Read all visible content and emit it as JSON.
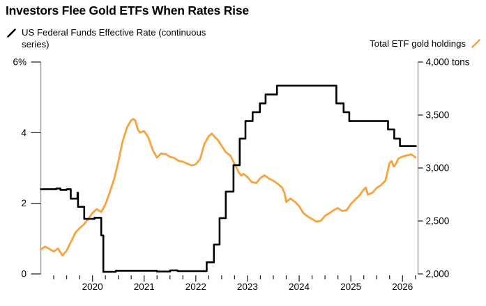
{
  "chart_data": {
    "type": "line",
    "title": "Investors Flee Gold ETFs When Rates Rise",
    "legend_position": "top",
    "grid": false,
    "x_axis": {
      "range_decimal_years": [
        2019.0,
        2026.3
      ],
      "year_tick_values": [
        2020,
        2021,
        2022,
        2023,
        2024,
        2025,
        2026
      ],
      "year_labels": [
        "2020",
        "2021",
        "2022",
        "2023",
        "2024",
        "2025",
        "2026"
      ],
      "minor_tick_interval_years": 0.25
    },
    "left_axis": {
      "unit": "%",
      "range": [
        0,
        6
      ],
      "tick_values": [
        0,
        2,
        4,
        6
      ],
      "tick_labels": [
        "0",
        "2",
        "4",
        "6%"
      ]
    },
    "right_axis": {
      "unit": "tons",
      "range": [
        2000,
        4000
      ],
      "tick_values": [
        2000,
        2500,
        3000,
        3500,
        4000
      ],
      "tick_labels": [
        "2,000",
        "2,500",
        "3,000",
        "3,500",
        "4,000 tons"
      ]
    },
    "series": [
      {
        "name": "US Federal Funds Effective Rate (continuous series)",
        "axis": "left",
        "unit": "%",
        "color": "#000000",
        "line_style": "step",
        "points": [
          [
            2019.0,
            2.4
          ],
          [
            2019.3,
            2.42
          ],
          [
            2019.38,
            2.38
          ],
          [
            2019.5,
            2.4
          ],
          [
            2019.58,
            2.13
          ],
          [
            2019.71,
            2.3
          ],
          [
            2019.72,
            1.9
          ],
          [
            2019.84,
            1.56
          ],
          [
            2020.04,
            1.59
          ],
          [
            2020.17,
            1.09
          ],
          [
            2020.21,
            0.06
          ],
          [
            2020.45,
            0.09
          ],
          [
            2021.25,
            0.07
          ],
          [
            2021.5,
            0.1
          ],
          [
            2021.65,
            0.08
          ],
          [
            2022.21,
            0.33
          ],
          [
            2022.35,
            0.83
          ],
          [
            2022.46,
            1.58
          ],
          [
            2022.58,
            2.33
          ],
          [
            2022.73,
            3.08
          ],
          [
            2022.85,
            3.83
          ],
          [
            2022.96,
            4.33
          ],
          [
            2023.1,
            4.58
          ],
          [
            2023.24,
            4.83
          ],
          [
            2023.35,
            5.08
          ],
          [
            2023.57,
            5.33
          ],
          [
            2024.72,
            4.83
          ],
          [
            2024.86,
            4.58
          ],
          [
            2024.97,
            4.33
          ],
          [
            2025.72,
            4.09
          ],
          [
            2025.84,
            3.83
          ],
          [
            2025.95,
            3.62
          ],
          [
            2026.26,
            3.62
          ]
        ]
      },
      {
        "name": "Total ETF gold holdings",
        "axis": "right",
        "unit": "tons",
        "color": "#F8A33C",
        "line_style": "linear",
        "points": [
          [
            2019.0,
            2230
          ],
          [
            2019.08,
            2258
          ],
          [
            2019.17,
            2235
          ],
          [
            2019.25,
            2212
          ],
          [
            2019.33,
            2240
          ],
          [
            2019.42,
            2175
          ],
          [
            2019.5,
            2220
          ],
          [
            2019.58,
            2300
          ],
          [
            2019.67,
            2390
          ],
          [
            2019.75,
            2432
          ],
          [
            2019.83,
            2465
          ],
          [
            2019.92,
            2520
          ],
          [
            2020.0,
            2575
          ],
          [
            2020.08,
            2612
          ],
          [
            2020.17,
            2585
          ],
          [
            2020.25,
            2655
          ],
          [
            2020.33,
            2765
          ],
          [
            2020.42,
            2895
          ],
          [
            2020.5,
            3060
          ],
          [
            2020.58,
            3245
          ],
          [
            2020.67,
            3385
          ],
          [
            2020.75,
            3450
          ],
          [
            2020.79,
            3462
          ],
          [
            2020.83,
            3448
          ],
          [
            2020.88,
            3360
          ],
          [
            2020.92,
            3335
          ],
          [
            2021.0,
            3348
          ],
          [
            2021.08,
            3290
          ],
          [
            2021.17,
            3165
          ],
          [
            2021.25,
            3098
          ],
          [
            2021.33,
            3138
          ],
          [
            2021.42,
            3130
          ],
          [
            2021.5,
            3105
          ],
          [
            2021.58,
            3095
          ],
          [
            2021.67,
            3068
          ],
          [
            2021.75,
            3060
          ],
          [
            2021.83,
            3042
          ],
          [
            2021.92,
            3025
          ],
          [
            2022.0,
            3035
          ],
          [
            2022.08,
            3082
          ],
          [
            2022.17,
            3230
          ],
          [
            2022.25,
            3300
          ],
          [
            2022.31,
            3325
          ],
          [
            2022.37,
            3290
          ],
          [
            2022.42,
            3268
          ],
          [
            2022.5,
            3210
          ],
          [
            2022.58,
            3150
          ],
          [
            2022.67,
            3115
          ],
          [
            2022.75,
            3040
          ],
          [
            2022.83,
            2960
          ],
          [
            2022.88,
            2928
          ],
          [
            2022.92,
            2945
          ],
          [
            2023.0,
            2915
          ],
          [
            2023.08,
            2868
          ],
          [
            2023.17,
            2858
          ],
          [
            2023.25,
            2905
          ],
          [
            2023.33,
            2930
          ],
          [
            2023.42,
            2898
          ],
          [
            2023.5,
            2880
          ],
          [
            2023.58,
            2852
          ],
          [
            2023.67,
            2815
          ],
          [
            2023.72,
            2760
          ],
          [
            2023.75,
            2678
          ],
          [
            2023.83,
            2712
          ],
          [
            2023.92,
            2680
          ],
          [
            2024.0,
            2640
          ],
          [
            2024.08,
            2575
          ],
          [
            2024.17,
            2540
          ],
          [
            2024.25,
            2518
          ],
          [
            2024.33,
            2495
          ],
          [
            2024.42,
            2502
          ],
          [
            2024.5,
            2548
          ],
          [
            2024.58,
            2572
          ],
          [
            2024.67,
            2602
          ],
          [
            2024.75,
            2622
          ],
          [
            2024.83,
            2595
          ],
          [
            2024.92,
            2602
          ],
          [
            2025.0,
            2660
          ],
          [
            2025.08,
            2700
          ],
          [
            2025.17,
            2742
          ],
          [
            2025.25,
            2798
          ],
          [
            2025.29,
            2815
          ],
          [
            2025.33,
            2748
          ],
          [
            2025.42,
            2768
          ],
          [
            2025.5,
            2812
          ],
          [
            2025.58,
            2836
          ],
          [
            2025.67,
            2880
          ],
          [
            2025.75,
            3048
          ],
          [
            2025.79,
            3065
          ],
          [
            2025.83,
            3012
          ],
          [
            2025.88,
            3046
          ],
          [
            2025.92,
            3088
          ],
          [
            2026.0,
            3108
          ],
          [
            2026.08,
            3118
          ],
          [
            2026.17,
            3128
          ],
          [
            2026.25,
            3100
          ]
        ]
      }
    ],
    "colors": {
      "fed_line": "#000000",
      "gold_line": "#F8A33C",
      "axis_line": "#9b9b9b",
      "tick": "#2a2a2a",
      "label": "#000000",
      "background": "#ffffff"
    }
  }
}
